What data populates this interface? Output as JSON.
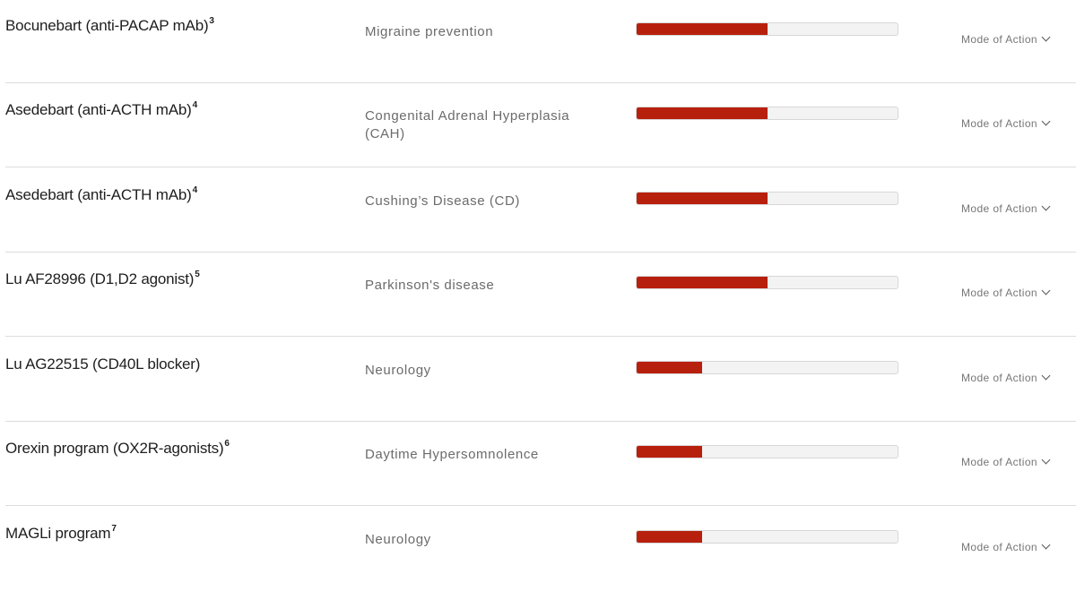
{
  "pipeline": {
    "rows": [
      {
        "compound": "Bocunebart (anti-PACAP mAb)",
        "ref": "3",
        "indication": "Migraine prevention",
        "progress": 0.5,
        "moa": "Mode of Action"
      },
      {
        "compound": "Asedebart (anti-ACTH mAb)",
        "ref": "4",
        "indication": "Congenital Adrenal Hyperplasia (CAH)",
        "progress": 0.5,
        "moa": "Mode of Action"
      },
      {
        "compound": "Asedebart (anti-ACTH mAb)",
        "ref": "4",
        "indication": "Cushing’s Disease (CD)",
        "progress": 0.5,
        "moa": "Mode of Action"
      },
      {
        "compound": "Lu AF28996 (D1,D2 agonist)",
        "ref": "5",
        "indication": "Parkinson's disease",
        "progress": 0.5,
        "moa": "Mode of Action"
      },
      {
        "compound": "Lu AG22515 (CD40L blocker)",
        "ref": "",
        "indication": "Neurology",
        "progress": 0.25,
        "moa": "Mode of Action"
      },
      {
        "compound": "Orexin program (OX2R-agonists)",
        "ref": "6",
        "indication": "Daytime Hypersomnolence",
        "progress": 0.25,
        "moa": "Mode of Action"
      },
      {
        "compound": "MAGLi program",
        "ref": "7",
        "indication": "Neurology",
        "progress": 0.25,
        "moa": "Mode of Action"
      }
    ]
  },
  "colors": {
    "progress_fill": "#b8200e",
    "progress_track": "#f3f3f3",
    "divider": "#dcdcdc"
  },
  "icons": {
    "moa_toggle": "chevron-down-icon"
  }
}
